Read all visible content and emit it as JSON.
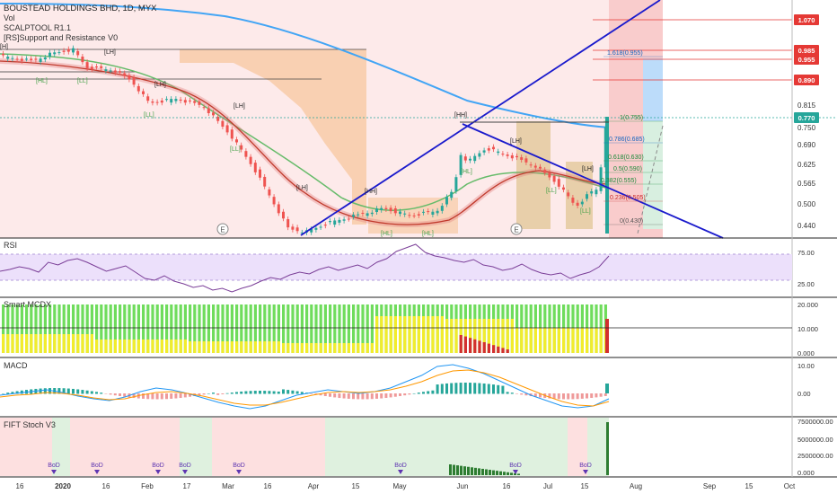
{
  "header": {
    "symbol_line": "BOUSTEAD HOLDINGS BHD, 1D, MYX",
    "indicators": [
      "Vol",
      "SCALPTOOL R1.1",
      "[RS]Support and Resistance V0"
    ]
  },
  "price_axis": {
    "ticks": [
      "0.815",
      "0.750",
      "0.690",
      "0.625",
      "0.565",
      "0.500",
      "0.440"
    ],
    "badges": [
      {
        "label": "1.070",
        "color": "#e53935"
      },
      {
        "label": "0.985",
        "color": "#e53935"
      },
      {
        "label": "0.955",
        "color": "#e53935"
      },
      {
        "label": "0.890",
        "color": "#e53935"
      },
      {
        "label": "0.770",
        "color": "#26a69a"
      }
    ]
  },
  "fib_levels": [
    "1.618(0.955)",
    "1(0.755)",
    "0.786(0.685)",
    "0.618(0.630)",
    "0.5(0.590)",
    "0.382(0.555)",
    "0.236(0.505)",
    "0(0.430)"
  ],
  "swing_labels": [
    "[H]",
    "[LH]",
    "[HL]",
    "[LL]",
    "[LH]",
    "[LL]",
    "[LH]",
    "[LL]",
    "[LH]",
    "[HH]",
    "[HH]",
    "[HL]",
    "[LH]",
    "[HL]",
    "[LH]",
    "[LL]",
    "[LL]",
    "[HL]"
  ],
  "earnings_marker": "E",
  "panes": {
    "rsi": {
      "title": "RSI",
      "ticks": [
        "75.00",
        "25.00"
      ]
    },
    "mcdx": {
      "title": "Smart MCDX",
      "ticks": [
        "20.000",
        "10.000",
        "0.000"
      ]
    },
    "macd": {
      "title": "MACD",
      "ticks": [
        "10.00",
        "0.00"
      ]
    },
    "stoch": {
      "title": "FIFT Stoch V3",
      "ticks": [
        "7500000.00",
        "5000000.00",
        "2500000.00",
        "0.000"
      ],
      "marker_label": "BoD"
    }
  },
  "time_axis": [
    "16",
    "2020",
    "16",
    "Feb",
    "17",
    "Mar",
    "16",
    "Apr",
    "15",
    "May",
    "Jun",
    "16",
    "Jul",
    "15",
    "Aug",
    "Sep",
    "15",
    "Oct"
  ],
  "colors": {
    "up": "#26a69a",
    "down": "#ef5350",
    "ma_blue": "#42a5f5",
    "ma_green": "#66bb6a",
    "trendline": "#1a1acc"
  }
}
